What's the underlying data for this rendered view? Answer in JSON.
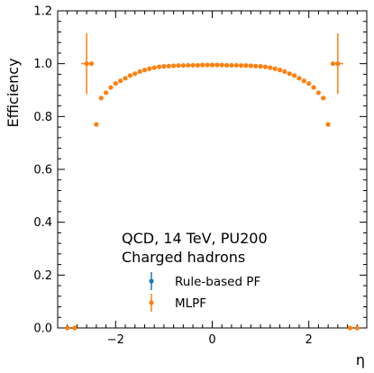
{
  "chart_data": {
    "type": "scatter",
    "xlabel": "η",
    "ylabel": "Efficiency",
    "xlim": [
      -3.2,
      3.2
    ],
    "ylim": [
      0.0,
      1.2
    ],
    "grid": false,
    "xticks": [
      -2,
      0,
      2
    ],
    "xtick_labels": [
      "−2",
      "0",
      "2"
    ],
    "yticks": [
      0.0,
      0.2,
      0.4,
      0.6,
      0.8,
      1.0,
      1.2
    ],
    "ytick_labels": [
      "0.0",
      "0.2",
      "0.4",
      "0.6",
      "0.8",
      "1.0",
      "1.2"
    ],
    "annotations": [
      "QCD, 14 TeV, PU200",
      "Charged hadrons"
    ],
    "legend_position": "lower-center",
    "series": [
      {
        "name": "Rule-based PF",
        "color": "#1f77b4",
        "points": []
      },
      {
        "name": "MLPF",
        "color": "#ff7f0e",
        "points": [
          {
            "x": -3.0,
            "y": 0.0
          },
          {
            "x": -2.85,
            "y": 0.0
          },
          {
            "x": -2.6,
            "y": 1.0,
            "err": 0.115
          },
          {
            "x": -2.5,
            "y": 1.0
          },
          {
            "x": -2.4,
            "y": 0.77
          },
          {
            "x": -2.3,
            "y": 0.87
          },
          {
            "x": -2.2,
            "y": 0.89
          },
          {
            "x": -2.1,
            "y": 0.91
          },
          {
            "x": -2.0,
            "y": 0.925
          },
          {
            "x": -1.9,
            "y": 0.935
          },
          {
            "x": -1.8,
            "y": 0.945
          },
          {
            "x": -1.7,
            "y": 0.955
          },
          {
            "x": -1.6,
            "y": 0.962
          },
          {
            "x": -1.5,
            "y": 0.97
          },
          {
            "x": -1.4,
            "y": 0.976
          },
          {
            "x": -1.3,
            "y": 0.981
          },
          {
            "x": -1.2,
            "y": 0.985
          },
          {
            "x": -1.1,
            "y": 0.988
          },
          {
            "x": -1.0,
            "y": 0.99
          },
          {
            "x": -0.9,
            "y": 0.991
          },
          {
            "x": -0.8,
            "y": 0.992
          },
          {
            "x": -0.7,
            "y": 0.993
          },
          {
            "x": -0.6,
            "y": 0.993
          },
          {
            "x": -0.5,
            "y": 0.994
          },
          {
            "x": -0.4,
            "y": 0.994
          },
          {
            "x": -0.3,
            "y": 0.994
          },
          {
            "x": -0.2,
            "y": 0.995
          },
          {
            "x": -0.1,
            "y": 0.995
          },
          {
            "x": 0.0,
            "y": 0.995
          },
          {
            "x": 0.1,
            "y": 0.995
          },
          {
            "x": 0.2,
            "y": 0.995
          },
          {
            "x": 0.3,
            "y": 0.994
          },
          {
            "x": 0.4,
            "y": 0.994
          },
          {
            "x": 0.5,
            "y": 0.994
          },
          {
            "x": 0.6,
            "y": 0.993
          },
          {
            "x": 0.7,
            "y": 0.993
          },
          {
            "x": 0.8,
            "y": 0.992
          },
          {
            "x": 0.9,
            "y": 0.991
          },
          {
            "x": 1.0,
            "y": 0.99
          },
          {
            "x": 1.1,
            "y": 0.988
          },
          {
            "x": 1.2,
            "y": 0.985
          },
          {
            "x": 1.3,
            "y": 0.981
          },
          {
            "x": 1.4,
            "y": 0.976
          },
          {
            "x": 1.5,
            "y": 0.97
          },
          {
            "x": 1.6,
            "y": 0.962
          },
          {
            "x": 1.7,
            "y": 0.955
          },
          {
            "x": 1.8,
            "y": 0.945
          },
          {
            "x": 1.9,
            "y": 0.935
          },
          {
            "x": 2.0,
            "y": 0.925
          },
          {
            "x": 2.1,
            "y": 0.91
          },
          {
            "x": 2.2,
            "y": 0.89
          },
          {
            "x": 2.3,
            "y": 0.87
          },
          {
            "x": 2.4,
            "y": 0.77
          },
          {
            "x": 2.5,
            "y": 1.0
          },
          {
            "x": 2.6,
            "y": 1.0,
            "err": 0.115
          },
          {
            "x": 2.85,
            "y": 0.0
          },
          {
            "x": 3.0,
            "y": 0.0
          }
        ]
      }
    ]
  }
}
